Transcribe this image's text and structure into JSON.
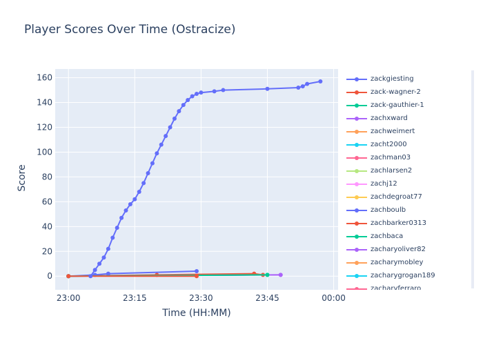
{
  "chart_data": {
    "type": "line",
    "title": "Player Scores Over Time (Ostracize)",
    "xlabel": "Time (HH:MM)",
    "ylabel": "Score",
    "x_range": [
      "22:57",
      "00:01"
    ],
    "ylim": [
      -11,
      167
    ],
    "x_ticks": [
      "23:00",
      "23:15",
      "23:30",
      "23:45",
      "00:00"
    ],
    "y_ticks": [
      0,
      20,
      40,
      60,
      80,
      100,
      120,
      140,
      160
    ],
    "grid": true,
    "legend_position": "right",
    "series": [
      {
        "name": "zackgiesting",
        "color": "#636efa",
        "x": [
          "23:05",
          "23:06",
          "23:07",
          "23:08",
          "23:09",
          "23:10",
          "23:11",
          "23:12",
          "23:13",
          "23:14",
          "23:15",
          "23:16",
          "23:17",
          "23:18",
          "23:19",
          "23:20",
          "23:21",
          "23:22",
          "23:23",
          "23:24",
          "23:25",
          "23:26",
          "23:27",
          "23:28",
          "23:29",
          "23:30",
          "23:33",
          "23:35",
          "23:45",
          "23:52",
          "23:53",
          "23:54",
          "23:57"
        ],
        "y": [
          0,
          5,
          10,
          15,
          22,
          31,
          39,
          47,
          53,
          58,
          62,
          68,
          75,
          83,
          91,
          99,
          106,
          113,
          120,
          127,
          133,
          138,
          142,
          145,
          147,
          148,
          149,
          150,
          151,
          152,
          153,
          155,
          157
        ]
      },
      {
        "name": "zack-wagner-2",
        "color": "#ef553b",
        "x": [
          "23:00",
          "23:29"
        ],
        "y": [
          0,
          0
        ]
      },
      {
        "name": "zack-gauthier-1",
        "color": "#00cc96",
        "x": [
          "23:00",
          "23:45"
        ],
        "y": [
          0,
          1
        ]
      },
      {
        "name": "zachxward",
        "color": "#ab63fa",
        "x": [
          "23:00",
          "23:48"
        ],
        "y": [
          0,
          1
        ]
      },
      {
        "name": "zachweimert",
        "color": "#ffa15a",
        "x": [
          "23:00",
          "23:00"
        ],
        "y": [
          0,
          0
        ]
      },
      {
        "name": "zacht2000",
        "color": "#19d3f3",
        "x": [
          "23:00",
          "23:00"
        ],
        "y": [
          0,
          0
        ]
      },
      {
        "name": "zachman03",
        "color": "#ff6692",
        "x": [
          "23:00",
          "23:00"
        ],
        "y": [
          0,
          0
        ]
      },
      {
        "name": "zachlarsen2",
        "color": "#b6e880",
        "x": [
          "23:00",
          "23:00"
        ],
        "y": [
          0,
          0
        ]
      },
      {
        "name": "zachj12",
        "color": "#ff97ff",
        "x": [
          "23:00",
          "23:00"
        ],
        "y": [
          0,
          0
        ]
      },
      {
        "name": "zachdegroat77",
        "color": "#fecb52",
        "x": [
          "23:00",
          "23:00"
        ],
        "y": [
          0,
          0
        ]
      },
      {
        "name": "zachboulb",
        "color": "#636efa",
        "x": [
          "23:00",
          "23:06",
          "23:09",
          "23:29"
        ],
        "y": [
          0,
          1,
          2,
          4
        ]
      },
      {
        "name": "zachbarker0313",
        "color": "#ef553b",
        "x": [
          "23:00",
          "23:20",
          "23:42",
          "23:44"
        ],
        "y": [
          0,
          1,
          2,
          1
        ]
      },
      {
        "name": "zachbaca",
        "color": "#00cc96",
        "x": [
          "23:00",
          "23:45"
        ],
        "y": [
          0,
          1
        ]
      },
      {
        "name": "zacharyoliver82",
        "color": "#ab63fa",
        "x": [
          "23:00",
          "23:48"
        ],
        "y": [
          0,
          1
        ]
      },
      {
        "name": "zacharymobley",
        "color": "#ffa15a",
        "x": [
          "23:00",
          "23:00"
        ],
        "y": [
          0,
          0
        ]
      },
      {
        "name": "zacharygrogan189",
        "color": "#19d3f3",
        "x": [
          "23:00",
          "23:00"
        ],
        "y": [
          0,
          0
        ]
      },
      {
        "name": "zacharyferraro",
        "color": "#ff6692",
        "x": [
          "23:00",
          "23:00"
        ],
        "y": [
          0,
          0
        ]
      }
    ]
  }
}
